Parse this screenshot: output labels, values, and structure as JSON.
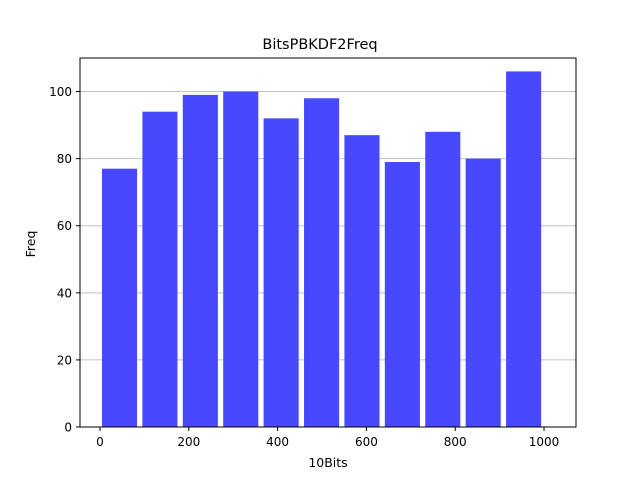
{
  "chart_data": {
    "type": "bar",
    "title": "BitsPBKDF2Freq",
    "xlabel": "10Bits",
    "ylabel": "Freq",
    "x": [
      44,
      135,
      226,
      317,
      408,
      499,
      590,
      681,
      772,
      863,
      954
    ],
    "values": [
      77,
      94,
      99,
      100,
      92,
      98,
      87,
      79,
      88,
      80,
      106
    ],
    "bar_width": 79,
    "xlim": [
      -45,
      1072
    ],
    "ylim": [
      0,
      110
    ],
    "xticks": [
      0,
      200,
      400,
      600,
      800,
      1000
    ],
    "yticks": [
      0,
      20,
      40,
      60,
      80,
      100
    ],
    "grid": "y",
    "bar_color": "#4848ff",
    "grid_color": "#c0c0c0"
  }
}
